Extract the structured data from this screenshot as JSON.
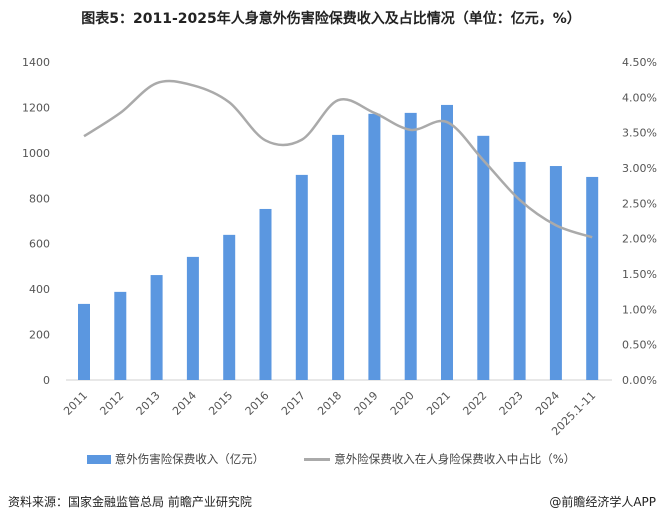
{
  "title": "图表5：2011-2025年人身意外伤害险保费收入及占比情况（单位：亿元，%）",
  "source": "资料来源：国家金融监管总局 前瞻产业研究院",
  "brand": "@前瞻经济学人APP",
  "chart_data": {
    "type": "bar+line",
    "categories": [
      "2011",
      "2012",
      "2013",
      "2014",
      "2015",
      "2016",
      "2017",
      "2018",
      "2019",
      "2020",
      "2021",
      "2022",
      "2023",
      "2024",
      "2025.1-11"
    ],
    "series": [
      {
        "name": "意外伤害险保费收入（亿元）",
        "type": "bar",
        "axis": "left",
        "color": "#5b97e0",
        "values": [
          335,
          388,
          462,
          542,
          639,
          753,
          903,
          1079,
          1172,
          1176,
          1211,
          1075,
          960,
          942,
          894
        ]
      },
      {
        "name": "意外险保费收入在人身险保费收入中占比（%）",
        "type": "line",
        "axis": "right",
        "color": "#aaaaaa",
        "values": [
          3.45,
          3.78,
          4.2,
          4.17,
          3.93,
          3.39,
          3.4,
          3.96,
          3.78,
          3.54,
          3.65,
          3.11,
          2.55,
          2.19,
          2.02
        ]
      }
    ],
    "left_axis": {
      "ylim": [
        0,
        1400
      ],
      "ticks": [
        "0",
        "200",
        "400",
        "600",
        "800",
        "1000",
        "1200",
        "1400"
      ]
    },
    "right_axis": {
      "ylim": [
        0,
        4.5
      ],
      "ticks": [
        "0.00%",
        "0.50%",
        "1.00%",
        "1.50%",
        "2.00%",
        "2.50%",
        "3.00%",
        "3.50%",
        "4.00%",
        "4.50%"
      ]
    },
    "grid": false,
    "legend_placement": "bottom"
  }
}
